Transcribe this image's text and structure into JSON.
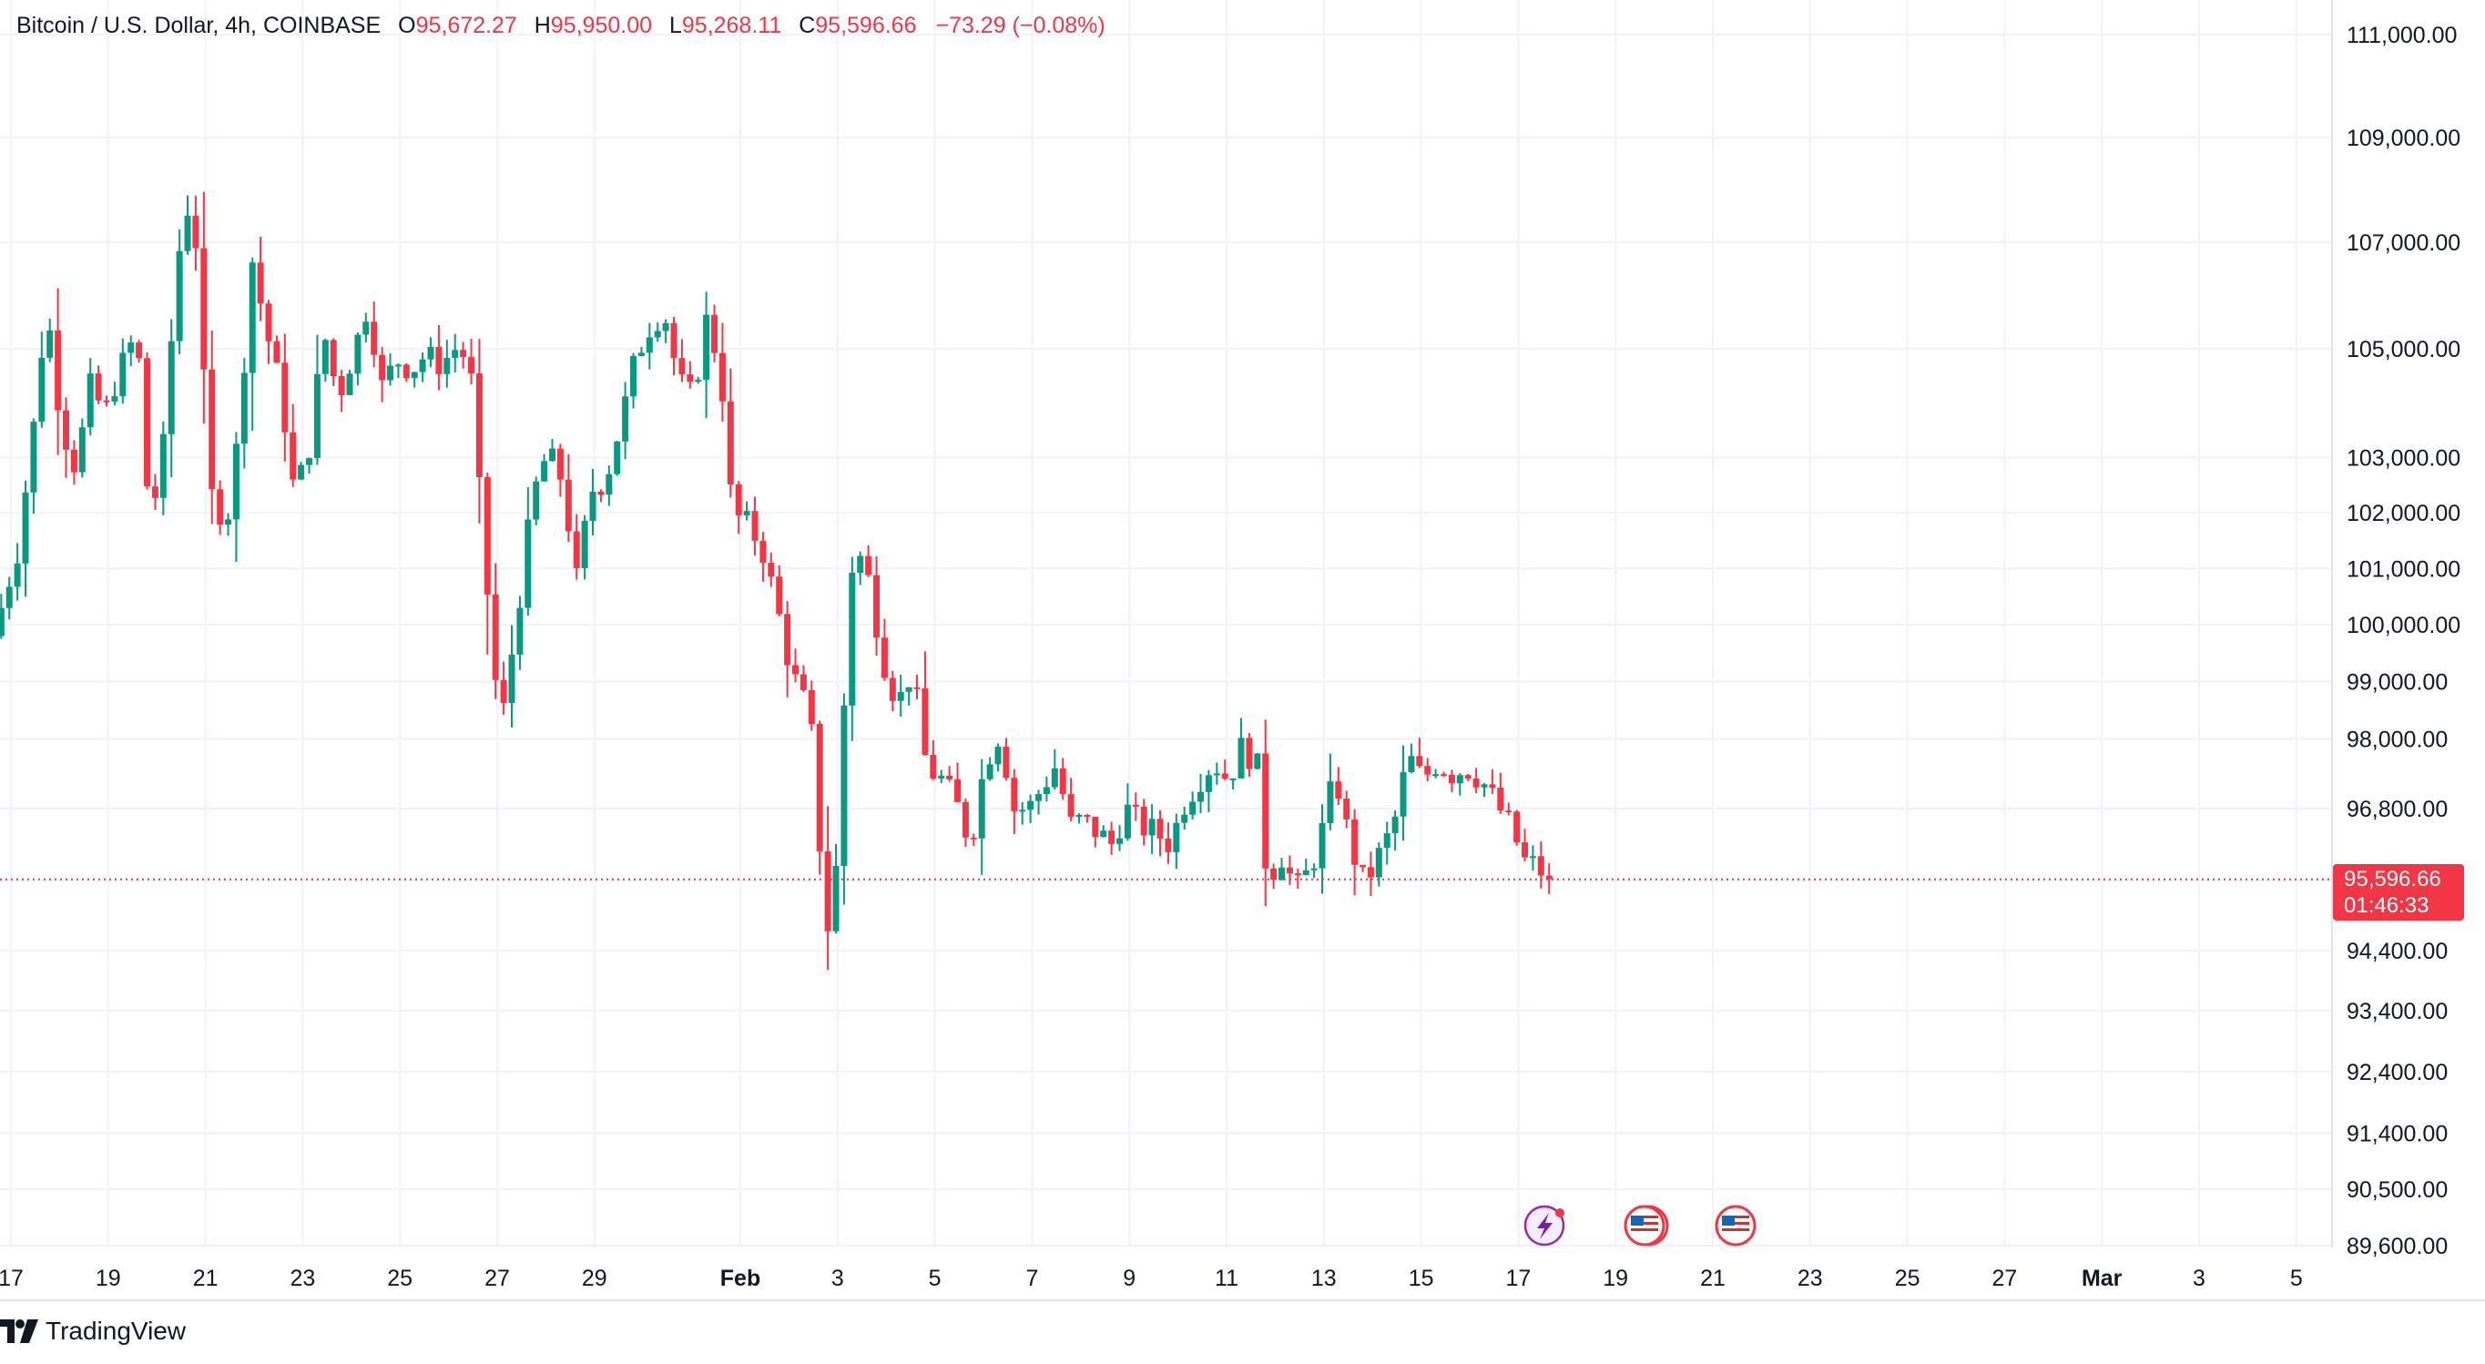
{
  "legend": {
    "symbol": "Bitcoin / U.S. Dollar, 4h, COINBASE",
    "o_label": "O",
    "o_value": "95,672.27",
    "h_label": "H",
    "h_value": "95,950.00",
    "l_label": "L",
    "l_value": "95,268.11",
    "c_label": "C",
    "c_value": "95,596.66",
    "change": "−73.29 (−0.08%)"
  },
  "last_price": {
    "price": "95,596.66",
    "countdown": "01:46:33"
  },
  "brand": "TradingView",
  "colors": {
    "up": "#089981",
    "down": "#f23645",
    "grid": "#f0f3fa",
    "text": "#131722"
  },
  "icons": [
    "lightning-event-icon",
    "us-flag-event-icon",
    "us-flag-event-icon"
  ],
  "chart_data": {
    "type": "candlestick",
    "y_scale": "log",
    "ylim": [
      89600,
      111000
    ],
    "y_ticks": [
      {
        "value": 111000,
        "label": "111,000.00"
      },
      {
        "value": 109000,
        "label": "109,000.00"
      },
      {
        "value": 107000,
        "label": "107,000.00"
      },
      {
        "value": 105000,
        "label": "105,000.00"
      },
      {
        "value": 103000,
        "label": "103,000.00"
      },
      {
        "value": 102000,
        "label": "102,000.00"
      },
      {
        "value": 101000,
        "label": "101,000.00"
      },
      {
        "value": 100000,
        "label": "100,000.00"
      },
      {
        "value": 99000,
        "label": "99,000.00"
      },
      {
        "value": 98000,
        "label": "98,000.00"
      },
      {
        "value": 96800,
        "label": "96,800.00"
      },
      {
        "value": 94400,
        "label": "94,400.00"
      },
      {
        "value": 93400,
        "label": "93,400.00"
      },
      {
        "value": 92400,
        "label": "92,400.00"
      },
      {
        "value": 91400,
        "label": "91,400.00"
      },
      {
        "value": 90500,
        "label": "90,500.00"
      },
      {
        "value": 89600,
        "label": "89,600.00"
      }
    ],
    "x_ticks": [
      {
        "day": 17,
        "label": "17"
      },
      {
        "day": 19,
        "label": "19"
      },
      {
        "day": 21,
        "label": "21"
      },
      {
        "day": 23,
        "label": "23"
      },
      {
        "day": 25,
        "label": "25"
      },
      {
        "day": 27,
        "label": "27"
      },
      {
        "day": 29,
        "label": "29"
      },
      {
        "day": 32,
        "label": "Feb"
      },
      {
        "day": 34,
        "label": "3"
      },
      {
        "day": 36,
        "label": "5"
      },
      {
        "day": 38,
        "label": "7"
      },
      {
        "day": 40,
        "label": "9"
      },
      {
        "day": 42,
        "label": "11"
      },
      {
        "day": 44,
        "label": "13"
      },
      {
        "day": 46,
        "label": "15"
      },
      {
        "day": 48,
        "label": "17"
      },
      {
        "day": 50,
        "label": "19"
      },
      {
        "day": 52,
        "label": "21"
      },
      {
        "day": 54,
        "label": "23"
      },
      {
        "day": 56,
        "label": "25"
      },
      {
        "day": 58,
        "label": "27"
      },
      {
        "day": 60,
        "label": "Mar"
      },
      {
        "day": 62,
        "label": "3"
      },
      {
        "day": 64,
        "label": "5"
      }
    ],
    "last_close": 95596.66,
    "path": [
      [
        16.8,
        99800
      ],
      [
        17.3,
        101300
      ],
      [
        17.6,
        103300
      ],
      [
        17.9,
        105800
      ],
      [
        18.2,
        103600
      ],
      [
        18.5,
        102800
      ],
      [
        18.8,
        104300
      ],
      [
        19.1,
        103800
      ],
      [
        19.4,
        104600
      ],
      [
        19.7,
        105200
      ],
      [
        19.9,
        104300
      ],
      [
        20.0,
        101600
      ],
      [
        20.3,
        103200
      ],
      [
        20.6,
        106700
      ],
      [
        20.9,
        108100
      ],
      [
        21.1,
        104800
      ],
      [
        21.3,
        102300
      ],
      [
        21.6,
        101800
      ],
      [
        21.9,
        103800
      ],
      [
        22.1,
        106800
      ],
      [
        22.4,
        105400
      ],
      [
        22.7,
        104300
      ],
      [
        23.0,
        102300
      ],
      [
        23.3,
        103200
      ],
      [
        23.6,
        105300
      ],
      [
        23.9,
        104100
      ],
      [
        24.2,
        104900
      ],
      [
        24.5,
        105800
      ],
      [
        24.8,
        104300
      ],
      [
        25.1,
        104800
      ],
      [
        25.4,
        104600
      ],
      [
        25.7,
        104900
      ],
      [
        26.0,
        104700
      ],
      [
        26.3,
        105000
      ],
      [
        26.6,
        104800
      ],
      [
        26.8,
        102400
      ],
      [
        27.1,
        99100
      ],
      [
        27.3,
        98500
      ],
      [
        27.6,
        100300
      ],
      [
        27.9,
        102300
      ],
      [
        28.2,
        103100
      ],
      [
        28.5,
        102600
      ],
      [
        28.8,
        100800
      ],
      [
        29.1,
        102400
      ],
      [
        29.4,
        102600
      ],
      [
        29.7,
        103600
      ],
      [
        30.0,
        104800
      ],
      [
        30.3,
        105400
      ],
      [
        30.6,
        105700
      ],
      [
        30.9,
        104400
      ],
      [
        31.2,
        104100
      ],
      [
        31.5,
        105700
      ],
      [
        31.8,
        104200
      ],
      [
        32.0,
        102000
      ],
      [
        32.3,
        101800
      ],
      [
        32.6,
        101400
      ],
      [
        32.9,
        100400
      ],
      [
        33.2,
        99200
      ],
      [
        33.5,
        98600
      ],
      [
        33.7,
        97800
      ],
      [
        33.9,
        94600
      ],
      [
        34.1,
        95200
      ],
      [
        34.3,
        98600
      ],
      [
        34.5,
        101500
      ],
      [
        34.8,
        100800
      ],
      [
        35.1,
        99400
      ],
      [
        35.4,
        98600
      ],
      [
        35.7,
        99200
      ],
      [
        36.0,
        97500
      ],
      [
        36.3,
        97300
      ],
      [
        36.6,
        96900
      ],
      [
        36.9,
        96200
      ],
      [
        37.2,
        97600
      ],
      [
        37.5,
        98100
      ],
      [
        37.8,
        96800
      ],
      [
        38.1,
        96800
      ],
      [
        38.4,
        97200
      ],
      [
        38.7,
        97600
      ],
      [
        38.9,
        96500
      ],
      [
        39.2,
        96600
      ],
      [
        39.5,
        96400
      ],
      [
        39.8,
        96200
      ],
      [
        40.1,
        96800
      ],
      [
        40.4,
        96500
      ],
      [
        40.7,
        96400
      ],
      [
        41.0,
        96200
      ],
      [
        41.3,
        96900
      ],
      [
        41.6,
        97300
      ],
      [
        41.9,
        97600
      ],
      [
        42.2,
        97300
      ],
      [
        42.5,
        97900
      ],
      [
        42.8,
        97500
      ],
      [
        43.0,
        95600
      ],
      [
        43.3,
        96000
      ],
      [
        43.6,
        95400
      ],
      [
        43.9,
        95800
      ],
      [
        44.1,
        96300
      ],
      [
        44.4,
        97400
      ],
      [
        44.7,
        96200
      ],
      [
        45.0,
        95500
      ],
      [
        45.3,
        96000
      ],
      [
        45.6,
        96500
      ],
      [
        45.9,
        97700
      ],
      [
        46.2,
        97300
      ],
      [
        46.5,
        97600
      ],
      [
        46.8,
        97400
      ],
      [
        47.1,
        97500
      ],
      [
        47.4,
        97300
      ],
      [
        47.7,
        96900
      ],
      [
        48.0,
        96500
      ],
      [
        48.3,
        95900
      ],
      [
        48.6,
        95800
      ],
      [
        48.7,
        95600
      ]
    ]
  }
}
